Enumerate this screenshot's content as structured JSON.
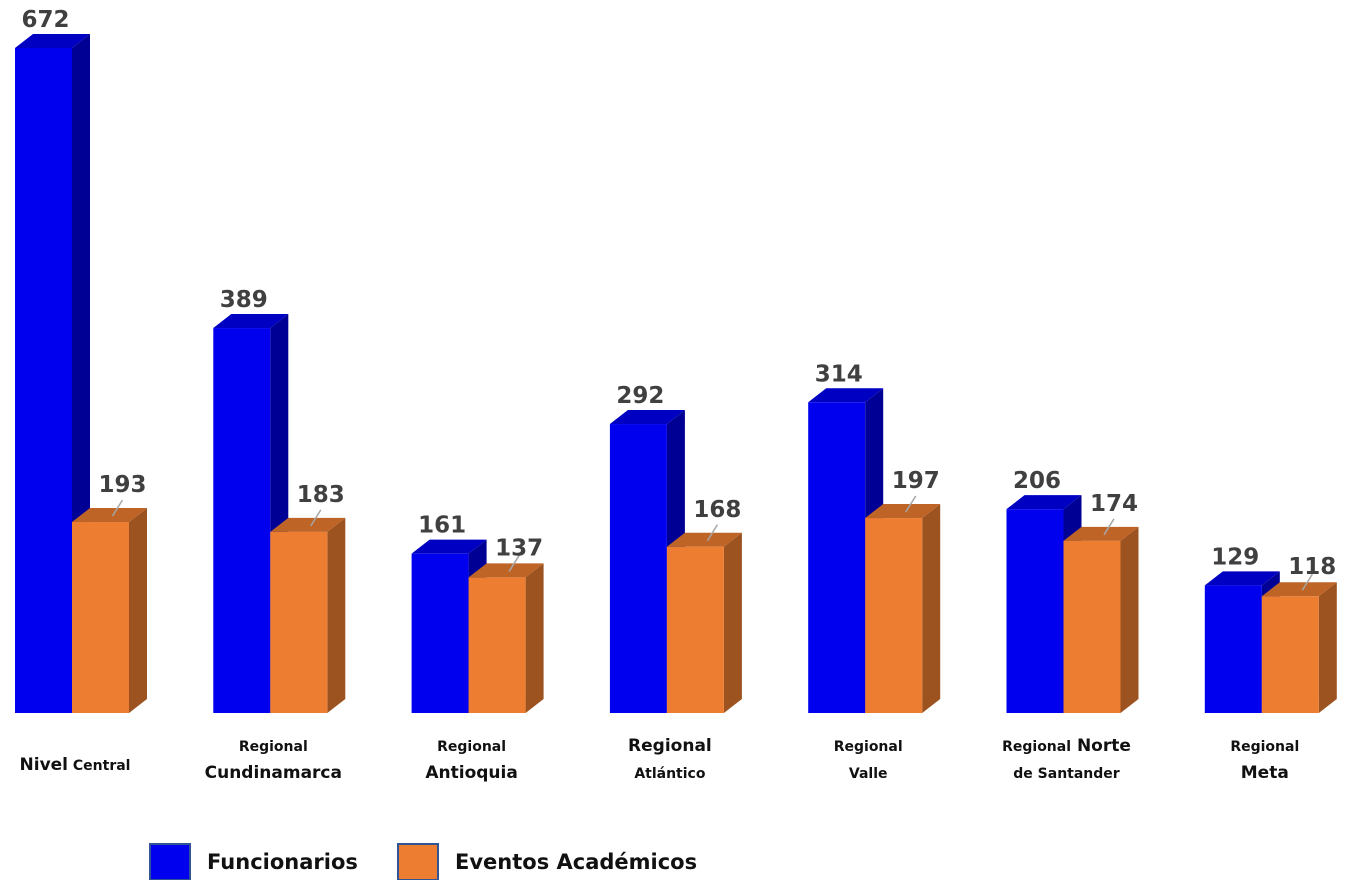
{
  "chart_data": {
    "type": "bar",
    "categories": [
      {
        "lines": [
          [
            "Nivel",
            "Central"
          ]
        ]
      },
      {
        "lines": [
          [
            "Regional"
          ],
          [
            "Cundinamarca"
          ]
        ]
      },
      {
        "lines": [
          [
            "Regional"
          ],
          [
            "Antioquia"
          ]
        ]
      },
      {
        "lines": [
          [
            "Regional"
          ],
          [
            "Atlántico"
          ]
        ]
      },
      {
        "lines": [
          [
            "Regional"
          ],
          [
            "Valle"
          ]
        ]
      },
      {
        "lines": [
          [
            "Regional",
            "Norte"
          ],
          [
            "de Santander"
          ]
        ]
      },
      {
        "lines": [
          [
            "Regional"
          ],
          [
            "Meta"
          ]
        ]
      }
    ],
    "series": [
      {
        "name": "Funcionarios",
        "color": "#0000EE",
        "values": [
          672,
          389,
          161,
          292,
          314,
          206,
          129
        ]
      },
      {
        "name": "Eventos Académicos",
        "color": "#ED7D31",
        "values": [
          193,
          183,
          137,
          168,
          197,
          174,
          118
        ]
      }
    ],
    "ylim": [
      0,
      672
    ],
    "style": "3d-clustered-bar",
    "grid": false,
    "legend_position": "bottom",
    "data_labels": true
  }
}
